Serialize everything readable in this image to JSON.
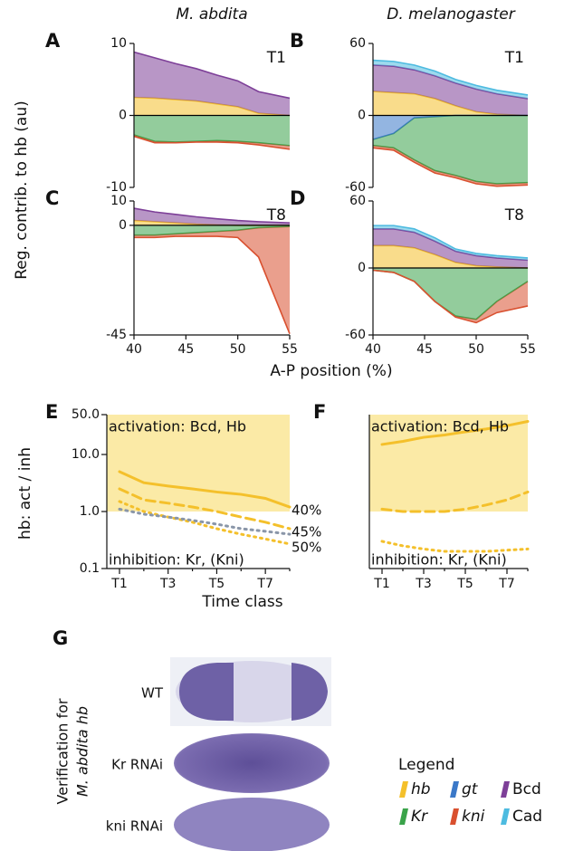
{
  "figure": {
    "columns": [
      "M. abdita",
      "D. melanogaster"
    ],
    "ylabel": "Reg. contrib. to hb (au)",
    "xlabel": "A-P position (%)",
    "ylabel2": "hb: act / inh",
    "xlabel2": "Time class"
  },
  "chart_data": [
    {
      "type": "area",
      "label": "A",
      "annotation": "T1",
      "x": [
        40,
        42,
        44,
        46,
        48,
        50,
        52,
        55
      ],
      "xlim": [
        40,
        55
      ],
      "ylim": [
        -10,
        10
      ],
      "yticks": [
        -10,
        0,
        10
      ],
      "series": [
        {
          "name": "hb",
          "color": "#f4c02b",
          "values": [
            2.5,
            2.4,
            2.2,
            2.0,
            1.6,
            1.2,
            0.3,
            0
          ]
        },
        {
          "name": "Bcd",
          "color": "#7d3f98",
          "values": [
            6.3,
            5.6,
            5.0,
            4.5,
            4.0,
            3.6,
            3.0,
            2.4
          ]
        },
        {
          "name": "Kr",
          "color": "#3aa34a",
          "values": [
            -2.7,
            -3.6,
            -3.7,
            -3.6,
            -3.5,
            -3.6,
            -3.8,
            -4.2
          ]
        },
        {
          "name": "kni",
          "color": "#d9502f",
          "values": [
            -0.2,
            -0.2,
            -0.1,
            -0.1,
            -0.2,
            -0.2,
            -0.3,
            -0.5
          ]
        }
      ]
    },
    {
      "type": "area",
      "label": "B",
      "annotation": "T1",
      "x": [
        40,
        42,
        44,
        46,
        48,
        50,
        52,
        55
      ],
      "xlim": [
        40,
        55
      ],
      "ylim": [
        -60,
        60
      ],
      "yticks": [
        -60,
        0,
        60
      ],
      "series": [
        {
          "name": "hb",
          "color": "#f4c02b",
          "values": [
            20,
            19,
            18,
            14,
            8,
            3,
            1,
            0
          ]
        },
        {
          "name": "Bcd",
          "color": "#7d3f98",
          "values": [
            22,
            22,
            20,
            19,
            19,
            19,
            17,
            14
          ]
        },
        {
          "name": "Cad",
          "color": "#4dbbe0",
          "values": [
            4,
            4,
            4,
            4,
            3,
            3,
            3,
            3
          ]
        },
        {
          "name": "gt",
          "color": "#3a78c8",
          "values": [
            -20,
            -15,
            -2,
            -1,
            0,
            0,
            0,
            0
          ]
        },
        {
          "name": "Kr",
          "color": "#3aa34a",
          "values": [
            -5,
            -12,
            -35,
            -45,
            -50,
            -55,
            -57,
            -56
          ]
        },
        {
          "name": "kni",
          "color": "#d9502f",
          "values": [
            -2,
            -2,
            -2,
            -2,
            -2,
            -2,
            -2,
            -2
          ]
        }
      ]
    },
    {
      "type": "area",
      "label": "C",
      "annotation": "T8",
      "x": [
        40,
        42,
        44,
        46,
        48,
        50,
        52,
        55
      ],
      "xlim": [
        40,
        55
      ],
      "ylim": [
        -45,
        10
      ],
      "yticks": [
        -45,
        0,
        10
      ],
      "xticks": [
        40,
        45,
        50,
        55
      ],
      "series": [
        {
          "name": "hb",
          "color": "#f4c02b",
          "values": [
            2,
            1.5,
            1,
            0.5,
            0.2,
            0,
            0,
            0
          ]
        },
        {
          "name": "Bcd",
          "color": "#7d3f98",
          "values": [
            5,
            4,
            3.5,
            3,
            2.5,
            2,
            1.5,
            1
          ]
        },
        {
          "name": "Kr",
          "color": "#3aa34a",
          "values": [
            -4,
            -4,
            -3.5,
            -3,
            -2.5,
            -2,
            -1,
            -0.5
          ]
        },
        {
          "name": "kni",
          "color": "#d9502f",
          "values": [
            -1,
            -1,
            -1,
            -1.5,
            -2,
            -3,
            -12,
            -44
          ]
        }
      ]
    },
    {
      "type": "area",
      "label": "D",
      "annotation": "T8",
      "x": [
        40,
        42,
        44,
        46,
        48,
        50,
        52,
        55
      ],
      "xlim": [
        40,
        55
      ],
      "ylim": [
        -60,
        60
      ],
      "yticks": [
        -60,
        0,
        60
      ],
      "xticks": [
        40,
        45,
        50,
        55
      ],
      "series": [
        {
          "name": "hb",
          "color": "#f4c02b",
          "values": [
            20,
            20,
            18,
            12,
            5,
            2,
            1,
            0
          ]
        },
        {
          "name": "Bcd",
          "color": "#7d3f98",
          "values": [
            15,
            15,
            14,
            12,
            10,
            9,
            8,
            7
          ]
        },
        {
          "name": "Cad",
          "color": "#4dbbe0",
          "values": [
            3,
            3,
            3,
            3,
            2,
            2,
            2,
            2
          ]
        },
        {
          "name": "Kr",
          "color": "#3aa34a",
          "values": [
            -2,
            -4,
            -12,
            -30,
            -43,
            -46,
            -30,
            -12
          ]
        },
        {
          "name": "kni",
          "color": "#d9502f",
          "values": [
            0,
            0,
            0,
            0,
            -1,
            -3,
            -10,
            -22
          ]
        }
      ]
    },
    {
      "type": "line",
      "label": "E",
      "log_y": true,
      "categories": [
        "T1",
        null,
        "T3",
        null,
        "T5",
        null,
        "T7",
        null
      ],
      "ylim": [
        0.1,
        50
      ],
      "yticks": [
        0.1,
        {
          "value": 1,
          "label": "1.0"
        },
        {
          "value": 10,
          "label": "10.0"
        },
        {
          "value": 50,
          "label": "50.0"
        }
      ],
      "band": [
        1,
        50
      ],
      "band_color": "#fbeaa6",
      "activation": "activation: Bcd, Hb",
      "inhibition": "inhibition: Kr, (Kni)",
      "series": [
        {
          "name": "40%",
          "color": "#f4c02b",
          "dash": "solid",
          "values": [
            5,
            3.2,
            2.8,
            2.5,
            2.2,
            2.0,
            1.7,
            1.2
          ]
        },
        {
          "name": "45%",
          "color": "#f4c02b",
          "dash": "dashed",
          "values": [
            2.5,
            1.6,
            1.4,
            1.2,
            1.0,
            0.8,
            0.65,
            0.5
          ]
        },
        {
          "name": "50%",
          "color": "#f4c02b",
          "dash": "dotted",
          "values": [
            1.5,
            1.0,
            0.8,
            0.65,
            0.5,
            0.4,
            0.33,
            0.27
          ]
        },
        {
          "color": "#8a96a8",
          "dash": "dotted",
          "values": [
            1.1,
            0.9,
            0.8,
            0.7,
            0.6,
            0.5,
            0.45,
            0.4
          ]
        }
      ]
    },
    {
      "type": "line",
      "label": "F",
      "log_y": true,
      "categories": [
        "T1",
        null,
        "T3",
        null,
        "T5",
        null,
        "T7",
        null
      ],
      "ylim": [
        0.1,
        50
      ],
      "band": [
        1,
        50
      ],
      "band_color": "#fbeaa6",
      "activation": "activation: Bcd, Hb",
      "inhibition": "inhibition: Kr, (Kni)",
      "series": [
        {
          "color": "#f4c02b",
          "dash": "solid",
          "values": [
            15,
            17,
            20,
            22,
            25,
            28,
            32,
            38
          ]
        },
        {
          "color": "#f4c02b",
          "dash": "dashed",
          "values": [
            1.1,
            1.0,
            1.0,
            1.0,
            1.1,
            1.3,
            1.6,
            2.2
          ]
        },
        {
          "color": "#f4c02b",
          "dash": "dotted",
          "values": [
            0.3,
            0.25,
            0.22,
            0.2,
            0.2,
            0.2,
            0.21,
            0.22
          ]
        }
      ]
    }
  ],
  "verification": {
    "label": "G",
    "title": [
      "Verification for",
      "M. abdita hb"
    ],
    "rows": [
      "WT",
      "Kr RNAi",
      "kni RNAi"
    ]
  },
  "legend": {
    "title": "Legend",
    "items": [
      {
        "label": "hb",
        "color": "#f4c02b",
        "italic": true
      },
      {
        "label": "gt",
        "color": "#3a78c8",
        "italic": true
      },
      {
        "label": "Bcd",
        "color": "#7d3f98",
        "italic": false
      },
      {
        "label": "Kr",
        "color": "#3aa34a",
        "italic": true
      },
      {
        "label": "kni",
        "color": "#d9502f",
        "italic": true
      },
      {
        "label": "Cad",
        "color": "#4dbbe0",
        "italic": false
      }
    ]
  }
}
